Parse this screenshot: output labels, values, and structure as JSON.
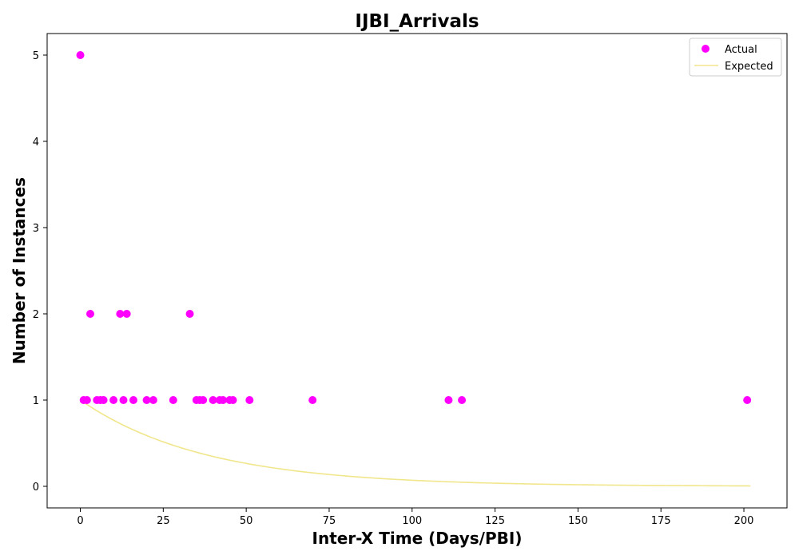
{
  "chart_data": {
    "type": "scatter",
    "title": "IJBI_Arrivals",
    "xlabel": "Inter-X Time (Days/PBI)",
    "ylabel": "Number of Instances",
    "xlim": [
      -10,
      213
    ],
    "ylim": [
      -0.25,
      5.25
    ],
    "xticks": [
      0,
      25,
      50,
      75,
      100,
      125,
      150,
      175,
      200
    ],
    "yticks": [
      0,
      1,
      2,
      3,
      4,
      5
    ],
    "grid": false,
    "legend_position": "top-right",
    "series": [
      {
        "name": "Actual",
        "kind": "scatter",
        "color": "#ff00ff",
        "points": [
          [
            0,
            5
          ],
          [
            1,
            1
          ],
          [
            2,
            1
          ],
          [
            3,
            2
          ],
          [
            5,
            1
          ],
          [
            6,
            1
          ],
          [
            7,
            1
          ],
          [
            10,
            1
          ],
          [
            12,
            2
          ],
          [
            13,
            1
          ],
          [
            14,
            2
          ],
          [
            16,
            1
          ],
          [
            20,
            1
          ],
          [
            22,
            1
          ],
          [
            28,
            1
          ],
          [
            33,
            2
          ],
          [
            35,
            1
          ],
          [
            36,
            1
          ],
          [
            37,
            1
          ],
          [
            40,
            1
          ],
          [
            42,
            1
          ],
          [
            43,
            1
          ],
          [
            45,
            1
          ],
          [
            46,
            1
          ],
          [
            51,
            1
          ],
          [
            70,
            1
          ],
          [
            111,
            1
          ],
          [
            115,
            1
          ],
          [
            201,
            1
          ]
        ]
      },
      {
        "name": "Expected",
        "kind": "line",
        "color": "#f0e68c",
        "function": "exponential_decay",
        "y0": 1.0,
        "rate": 0.0265,
        "x_range": [
          0,
          202
        ]
      }
    ]
  }
}
